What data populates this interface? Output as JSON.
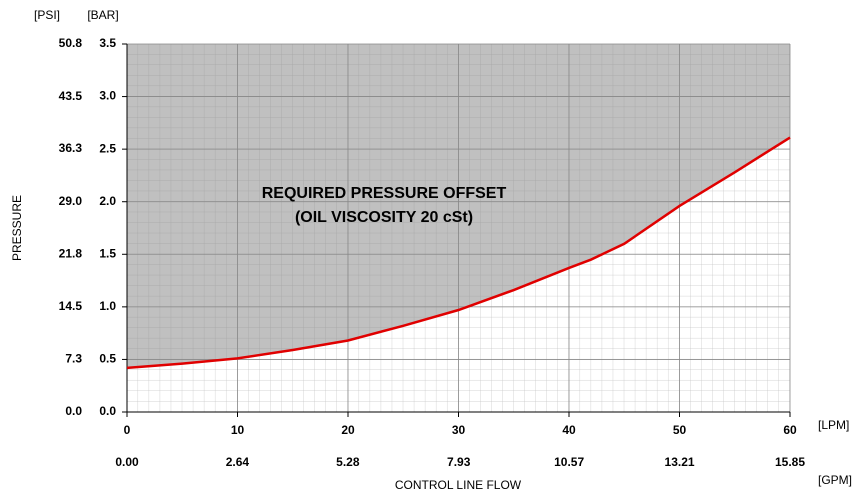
{
  "chart_data": {
    "type": "line",
    "x_unit": "[LPM]",
    "x2_unit": "[GPM]",
    "y_unit": "[BAR]",
    "y2_unit": "[PSI]",
    "xlabel": "CONTROL LINE FLOW",
    "ylabel": "PRESSURE",
    "annotations": [
      "REQUIRED PRESSURE OFFSET",
      "(OIL VISCOSITY 20 cSt)"
    ],
    "x": [
      0,
      5,
      10,
      15,
      20,
      25,
      30,
      35,
      40,
      42,
      45,
      50,
      55,
      60
    ],
    "series": [
      {
        "color": "#e00000",
        "values": [
          0.42,
          0.46,
          0.51,
          0.59,
          0.68,
          0.82,
          0.97,
          1.16,
          1.37,
          1.45,
          1.6,
          1.96,
          2.28,
          2.61
        ]
      }
    ],
    "xlim": [
      0,
      60
    ],
    "xticks": [
      0,
      10,
      20,
      30,
      40,
      50,
      60
    ],
    "x2lim": [
      0,
      15.85
    ],
    "x2ticks": [
      {
        "value": 0,
        "label": "0.00"
      },
      2.64,
      5.28,
      7.93,
      10.57,
      13.21,
      15.85
    ],
    "ylim": [
      0,
      3.5
    ],
    "yticks": [
      {
        "value": 0,
        "label": "0.0"
      },
      0.5,
      {
        "value": 1,
        "label": "1.0"
      },
      1.5,
      {
        "value": 2,
        "label": "2.0"
      },
      2.5,
      {
        "value": 3,
        "label": "3.0"
      },
      3.5
    ],
    "y2lim": [
      0,
      50.8
    ],
    "y2ticks": [
      {
        "value": 0,
        "label": "0.0"
      },
      7.3,
      14.5,
      21.8,
      {
        "value": 29,
        "label": "29.0"
      },
      36.3,
      43.5,
      50.8
    ],
    "grid": true,
    "shade": "above"
  }
}
